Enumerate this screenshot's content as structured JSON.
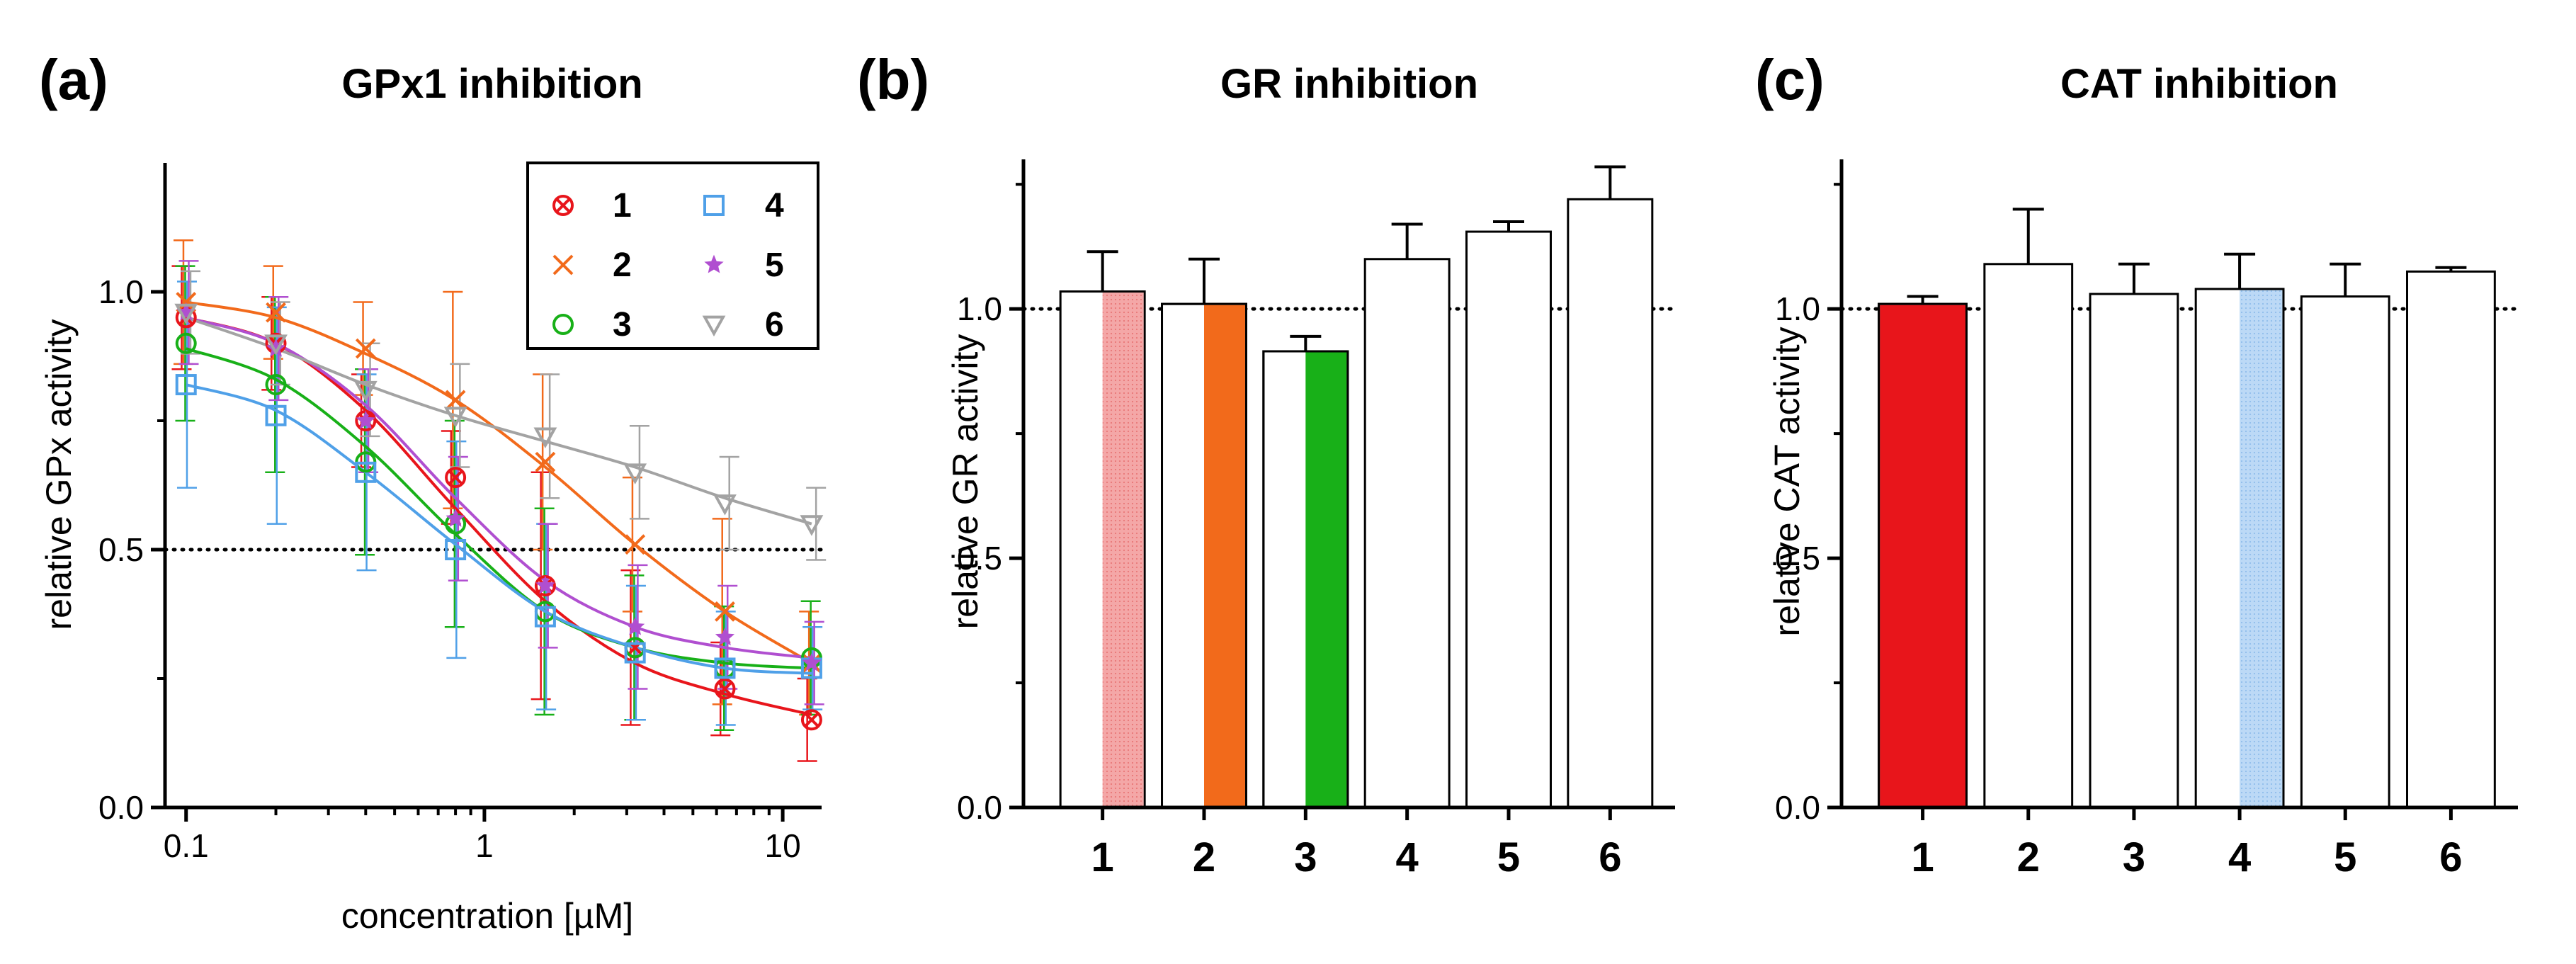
{
  "colors": {
    "s1": "#e8151b",
    "s2": "#f26a1b",
    "s3": "#18b018",
    "s4": "#4fa0e8",
    "s5": "#b04fd0",
    "s6": "#a3a3a3",
    "s1_light": "#f29a9a",
    "s4_light": "#b8d7f5"
  },
  "chart_data": [
    {
      "type": "line",
      "panel_label": "(a)",
      "title": "GPx1 inhibition",
      "xlabel": "concentration [µM]",
      "ylabel": "relative GPx activity",
      "xscale": "log",
      "xlim": [
        0.085,
        13.5
      ],
      "ylim": [
        0.0,
        1.25
      ],
      "x_ticks": [
        0.1,
        1,
        10
      ],
      "x_tick_labels": [
        "0.1",
        "1",
        "10"
      ],
      "y_ticks": [
        0.0,
        0.5,
        1.0
      ],
      "y_tick_labels": [
        "0.0",
        "0.5",
        "1.0"
      ],
      "reference_line": 0.5,
      "legend_position": "top-right",
      "x": [
        0.1,
        0.2,
        0.4,
        0.8,
        1.6,
        3.2,
        6.4,
        12.5
      ],
      "series": [
        {
          "name": "1",
          "marker": "circle-x",
          "color": "s1",
          "values": [
            0.95,
            0.9,
            0.75,
            0.64,
            0.43,
            0.31,
            0.23,
            0.17
          ],
          "errors": [
            0.1,
            0.09,
            0.09,
            0.09,
            0.22,
            0.15,
            0.09,
            0.08
          ],
          "fit": [
            0.95,
            0.9,
            0.77,
            0.58,
            0.4,
            0.28,
            0.22,
            0.18
          ]
        },
        {
          "name": "2",
          "marker": "x",
          "color": "s2",
          "values": [
            0.98,
            0.96,
            0.89,
            0.79,
            0.67,
            0.51,
            0.38,
            0.28
          ],
          "errors": [
            0.12,
            0.09,
            0.09,
            0.21,
            0.17,
            0.13,
            0.18,
            0.1
          ],
          "fit": [
            0.98,
            0.95,
            0.88,
            0.79,
            0.66,
            0.51,
            0.38,
            0.28
          ]
        },
        {
          "name": "3",
          "marker": "circle",
          "color": "s3",
          "values": [
            0.9,
            0.82,
            0.67,
            0.55,
            0.38,
            0.31,
            0.27,
            0.29
          ],
          "errors": [
            0.15,
            0.17,
            0.18,
            0.2,
            0.2,
            0.14,
            0.12,
            0.11
          ],
          "fit": [
            0.89,
            0.83,
            0.7,
            0.53,
            0.38,
            0.31,
            0.28,
            0.27
          ]
        },
        {
          "name": "4",
          "marker": "square",
          "color": "s4",
          "values": [
            0.82,
            0.76,
            0.65,
            0.5,
            0.37,
            0.3,
            0.27,
            0.27
          ],
          "errors": [
            0.2,
            0.21,
            0.19,
            0.21,
            0.18,
            0.13,
            0.11,
            0.08
          ],
          "fit": [
            0.82,
            0.77,
            0.65,
            0.51,
            0.38,
            0.31,
            0.27,
            0.26
          ]
        },
        {
          "name": "5",
          "marker": "star",
          "color": "s5",
          "values": [
            0.96,
            0.89,
            0.75,
            0.56,
            0.43,
            0.35,
            0.33,
            0.28
          ],
          "errors": [
            0.1,
            0.1,
            0.1,
            0.12,
            0.12,
            0.12,
            0.1,
            0.08
          ],
          "fit": [
            0.95,
            0.9,
            0.78,
            0.6,
            0.44,
            0.35,
            0.31,
            0.29
          ]
        },
        {
          "name": "6",
          "marker": "triangle-down",
          "color": "s6",
          "values": [
            0.96,
            0.9,
            0.81,
            0.76,
            0.72,
            0.65,
            0.59,
            0.55
          ],
          "errors": [
            0.08,
            0.08,
            0.09,
            0.1,
            0.12,
            0.09,
            0.09,
            0.07
          ],
          "fit": [
            0.95,
            0.89,
            0.82,
            0.76,
            0.71,
            0.66,
            0.6,
            0.55
          ]
        }
      ]
    },
    {
      "type": "bar",
      "panel_label": "(b)",
      "title": "GR inhibition",
      "ylabel": "relative GR activity",
      "ylim": [
        0.0,
        1.3
      ],
      "y_ticks": [
        0.0,
        0.5,
        1.0
      ],
      "y_tick_labels": [
        "0.0",
        "0.5",
        "1.0"
      ],
      "reference_line": 1.0,
      "categories": [
        "1",
        "2",
        "3",
        "4",
        "5",
        "6"
      ],
      "values": [
        1.035,
        1.01,
        0.915,
        1.1,
        1.155,
        1.22
      ],
      "errors": [
        0.08,
        0.09,
        0.03,
        0.07,
        0.02,
        0.065
      ],
      "fills": [
        "s1_light",
        "s2",
        "s3",
        "none",
        "none",
        "none"
      ]
    },
    {
      "type": "bar",
      "panel_label": "(c)",
      "title": "CAT inhibition",
      "ylabel": "relative CAT activity",
      "ylim": [
        0.0,
        1.3
      ],
      "y_ticks": [
        0.0,
        0.5,
        1.0
      ],
      "y_tick_labels": [
        "0.0",
        "0.5",
        "1.0"
      ],
      "reference_line": 1.0,
      "categories": [
        "1",
        "2",
        "3",
        "4",
        "5",
        "6"
      ],
      "values": [
        1.01,
        1.09,
        1.03,
        1.04,
        1.025,
        1.075
      ],
      "errors": [
        0.015,
        0.11,
        0.06,
        0.07,
        0.065,
        0.008
      ],
      "fills": [
        "s1",
        "none",
        "none",
        "s4_light",
        "none",
        "none"
      ]
    }
  ]
}
